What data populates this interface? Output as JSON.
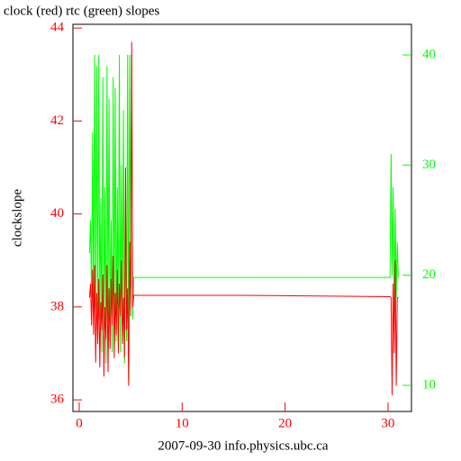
{
  "chart_data": {
    "type": "line",
    "title": "clock (red) rtc (green) slopes",
    "ylabel": "clockslope",
    "xlabel": "2007-09-30 info.physics.ubc.ca",
    "x": [
      1.0,
      1.1,
      1.2,
      1.3,
      1.4,
      1.5,
      1.6,
      1.7,
      1.8,
      1.9,
      2.0,
      2.1,
      2.2,
      2.3,
      2.4,
      2.5,
      2.6,
      2.7,
      2.8,
      2.9,
      3.0,
      3.1,
      3.2,
      3.3,
      3.4,
      3.5,
      3.6,
      3.7,
      3.8,
      3.9,
      4.0,
      4.1,
      4.2,
      4.3,
      4.4,
      4.5,
      4.6,
      4.7,
      4.8,
      4.9,
      5.0,
      5.1,
      5.2,
      5.3,
      15.8,
      30.2,
      30.3,
      30.4,
      30.5,
      30.6,
      30.7,
      30.8,
      30.9,
      31.0
    ],
    "series": [
      {
        "name": "clock",
        "color": "#ff0000",
        "values": [
          38.2,
          38.5,
          37.6,
          38.8,
          37.4,
          38.9,
          36.8,
          38.3,
          37.2,
          38.6,
          36.7,
          38.1,
          37.5,
          38.7,
          36.5,
          38.0,
          37.3,
          38.9,
          36.6,
          38.4,
          37.1,
          38.6,
          37.6,
          39.1,
          36.9,
          38.3,
          37.4,
          38.8,
          37.0,
          38.5,
          37.8,
          39.0,
          37.2,
          38.2,
          36.9,
          41.0,
          37.5,
          38.4,
          36.3,
          39.4,
          37.8,
          43.7,
          38.0,
          38.25,
          38.25,
          38.22,
          38.2,
          36.1,
          38.5,
          37.0,
          39.0,
          36.3,
          38.2,
          38.2
        ]
      },
      {
        "name": "rtc",
        "color": "#00ff00",
        "axis": "y2",
        "values": [
          22,
          25,
          18,
          33,
          15,
          40,
          17,
          39,
          14,
          40,
          16,
          27,
          13,
          38,
          15,
          28,
          12,
          39,
          16,
          36,
          14,
          25,
          13,
          38,
          15,
          37,
          14,
          28,
          16,
          40,
          13,
          30,
          15,
          35,
          12,
          26,
          14,
          40,
          10.5,
          40,
          22,
          40,
          16,
          19.8,
          19.8,
          19.8,
          31,
          20,
          28,
          16,
          26,
          18,
          23,
          19.8
        ]
      }
    ],
    "xlim": [
      -0.61,
      32.28
    ],
    "xticks": [
      0,
      10,
      20,
      30
    ],
    "ylim": [
      35.75,
      44.08
    ],
    "yticks": [
      36,
      38,
      40,
      42,
      44
    ],
    "y2lim": [
      7.63,
      42.78
    ],
    "y2ticks": [
      10,
      20,
      30,
      40
    ]
  }
}
